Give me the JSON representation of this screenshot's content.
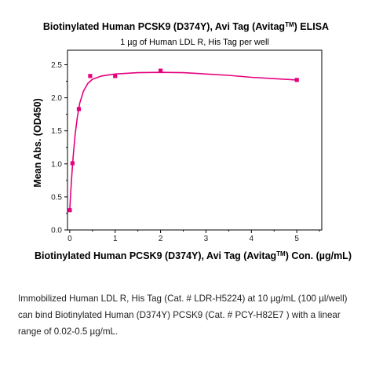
{
  "chart_data": {
    "type": "scatter",
    "title_main": "Biotinylated Human PCSK9 (D374Y), Avi Tag (Avitag",
    "title_sup": "TM",
    "title_end": ") ELISA",
    "subtitle": "1 µg of Human LDL R, His Tag per well",
    "xlabel_main": "Biotinylated Human PCSK9 (D374Y), Avi Tag (Avitag",
    "xlabel_sup": "TM",
    "xlabel_end": ") Con. (µg/mL)",
    "ylabel": "Mean Abs. (OD450)",
    "xlim": [
      -0.05,
      5.55
    ],
    "ylim": [
      0,
      2.72
    ],
    "xticks": [
      0,
      1,
      2,
      3,
      4,
      5
    ],
    "yticks": [
      0.0,
      0.5,
      1.0,
      1.5,
      2.0,
      2.5
    ],
    "ytick_labels": [
      "0.0",
      "0.5",
      "1.0",
      "1.5",
      "2.0",
      "2.5"
    ],
    "color": "#e6007e",
    "points": [
      {
        "x": 0.0,
        "y": 0.3
      },
      {
        "x": 0.06,
        "y": 1.01
      },
      {
        "x": 0.2,
        "y": 1.83
      },
      {
        "x": 0.45,
        "y": 2.33
      },
      {
        "x": 1.0,
        "y": 2.33
      },
      {
        "x": 2.0,
        "y": 2.41
      },
      {
        "x": 5.0,
        "y": 2.27
      }
    ],
    "fit_curve": [
      [
        0.0,
        0.3
      ],
      [
        0.02,
        0.55
      ],
      [
        0.05,
        0.88
      ],
      [
        0.08,
        1.15
      ],
      [
        0.12,
        1.45
      ],
      [
        0.17,
        1.72
      ],
      [
        0.22,
        1.92
      ],
      [
        0.3,
        2.1
      ],
      [
        0.4,
        2.22
      ],
      [
        0.5,
        2.28
      ],
      [
        0.7,
        2.33
      ],
      [
        1.0,
        2.36
      ],
      [
        1.5,
        2.38
      ],
      [
        2.0,
        2.385
      ],
      [
        2.5,
        2.38
      ],
      [
        3.0,
        2.36
      ],
      [
        3.5,
        2.34
      ],
      [
        4.0,
        2.31
      ],
      [
        4.5,
        2.29
      ],
      [
        5.0,
        2.27
      ]
    ]
  },
  "caption": {
    "line1": "Immobilized Human LDL R, His Tag (Cat. # LDR-H5224) at 10 µg/mL (100 µl/well)",
    "line2": "can bind Biotinylated Human (D374Y) PCSK9 (Cat. # PCY-H82E7 ) with a linear",
    "line3": "range of 0.02-0.5 µg/mL."
  }
}
